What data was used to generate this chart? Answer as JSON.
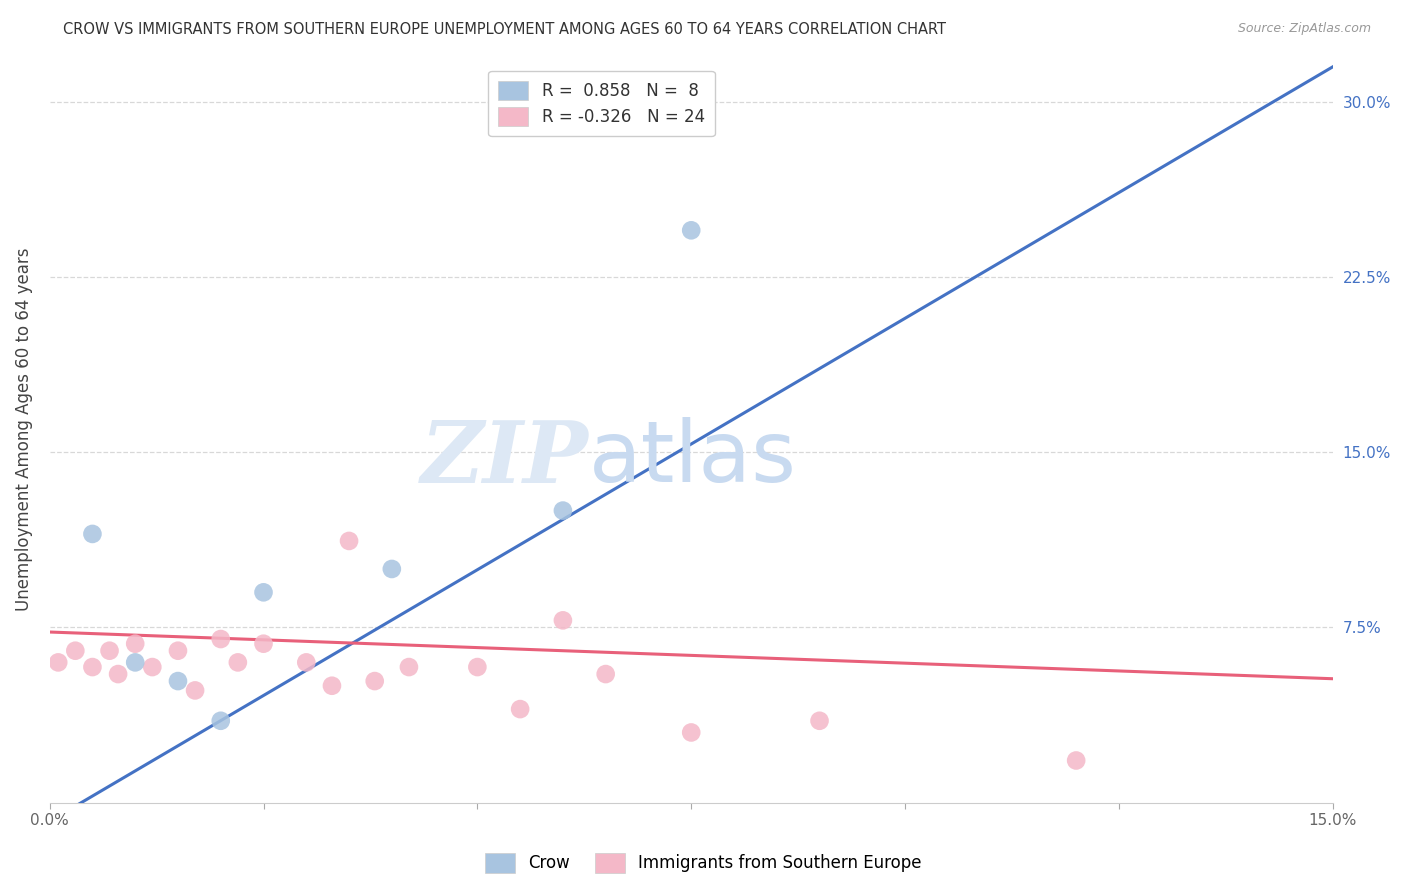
{
  "title": "CROW VS IMMIGRANTS FROM SOUTHERN EUROPE UNEMPLOYMENT AMONG AGES 60 TO 64 YEARS CORRELATION CHART",
  "source": "Source: ZipAtlas.com",
  "ylabel": "Unemployment Among Ages 60 to 64 years",
  "xlabel_crow": "Crow",
  "xlabel_immigrants": "Immigrants from Southern Europe",
  "xlim": [
    0.0,
    0.15
  ],
  "ylim": [
    0.0,
    0.32
  ],
  "xticks": [
    0.0,
    0.025,
    0.05,
    0.075,
    0.1,
    0.125,
    0.15
  ],
  "xtick_labels": [
    "0.0%",
    "",
    "",
    "",
    "",
    "",
    "15.0%"
  ],
  "yticks_right": [
    0.075,
    0.15,
    0.225,
    0.3
  ],
  "ytick_labels_right": [
    "7.5%",
    "15.0%",
    "22.5%",
    "30.0%"
  ],
  "crow_R": 0.858,
  "crow_N": 8,
  "immigrants_R": -0.326,
  "immigrants_N": 24,
  "crow_color": "#a8c4e0",
  "crow_line_color": "#4472c4",
  "immigrants_color": "#f4b8c8",
  "immigrants_line_color": "#e8607a",
  "crow_points": [
    [
      0.005,
      0.115
    ],
    [
      0.01,
      0.06
    ],
    [
      0.015,
      0.052
    ],
    [
      0.02,
      0.035
    ],
    [
      0.025,
      0.09
    ],
    [
      0.04,
      0.1
    ],
    [
      0.06,
      0.125
    ],
    [
      0.075,
      0.245
    ]
  ],
  "immigrants_points": [
    [
      0.001,
      0.06
    ],
    [
      0.003,
      0.065
    ],
    [
      0.005,
      0.058
    ],
    [
      0.007,
      0.065
    ],
    [
      0.008,
      0.055
    ],
    [
      0.01,
      0.068
    ],
    [
      0.012,
      0.058
    ],
    [
      0.015,
      0.065
    ],
    [
      0.017,
      0.048
    ],
    [
      0.02,
      0.07
    ],
    [
      0.022,
      0.06
    ],
    [
      0.025,
      0.068
    ],
    [
      0.03,
      0.06
    ],
    [
      0.033,
      0.05
    ],
    [
      0.035,
      0.112
    ],
    [
      0.038,
      0.052
    ],
    [
      0.042,
      0.058
    ],
    [
      0.05,
      0.058
    ],
    [
      0.055,
      0.04
    ],
    [
      0.06,
      0.078
    ],
    [
      0.065,
      0.055
    ],
    [
      0.075,
      0.03
    ],
    [
      0.09,
      0.035
    ],
    [
      0.12,
      0.018
    ]
  ],
  "crow_line": [
    -0.008,
    0.315
  ],
  "immigrants_line": [
    0.073,
    0.053
  ],
  "watermark_zip": "ZIP",
  "watermark_atlas": "atlas",
  "background_color": "#ffffff",
  "grid_color": "#d8d8d8"
}
